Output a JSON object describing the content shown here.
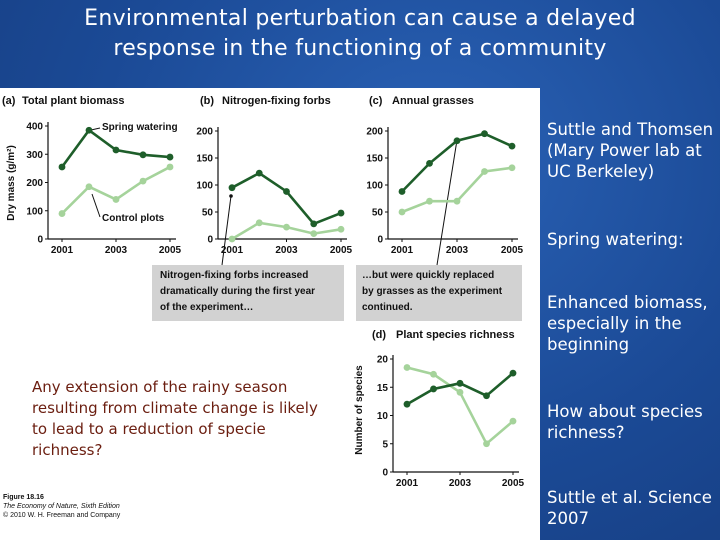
{
  "title_line1": "Environmental perturbation can cause a delayed",
  "title_line2": "response in the functioning of a community",
  "right_text": {
    "p1": "Suttle and Thomsen (Mary Power lab at UC Berkeley)",
    "p2": "Spring watering:",
    "p3": "Enhanced biomass, especially in the beginning",
    "p4": "How about species richness?",
    "p5": "Suttle et al. Science 2007"
  },
  "extension_text": "Any extension of the rainy season resulting from climate change is likely to lead to a reduction of specie richness?",
  "caption": {
    "fig": "Figure 18.16",
    "book": "The Economy of Nature, Sixth Edition",
    "copyright": "© 2010 W. H. Freeman and Company"
  },
  "colors": {
    "watering": "#1e5e2a",
    "control": "#a5d39b",
    "box": "#d2d2d2"
  },
  "chart_data": [
    {
      "type": "line",
      "panel_letter": "(a)",
      "title": "Total plant biomass",
      "ylabel": "Dry mass (g/m²)",
      "ylim": [
        0,
        400
      ],
      "yticks": [
        "0",
        "100",
        "200",
        "300",
        "400"
      ],
      "x": [
        2001,
        2002,
        2003,
        2004,
        2005
      ],
      "xticks": [
        "2001",
        "2003",
        "2005"
      ],
      "series": [
        {
          "name": "Spring watering",
          "values": [
            255,
            385,
            315,
            298,
            290
          ]
        },
        {
          "name": "Control plots",
          "values": [
            90,
            185,
            140,
            205,
            255
          ]
        }
      ]
    },
    {
      "type": "line",
      "panel_letter": "(b)",
      "title": "Nitrogen-fixing forbs",
      "ylim": [
        0,
        200
      ],
      "yticks": [
        "0",
        "50",
        "100",
        "150",
        "200"
      ],
      "x": [
        2001,
        2002,
        2003,
        2004,
        2005
      ],
      "xticks": [
        "2001",
        "2003",
        "2005"
      ],
      "series": [
        {
          "name": "Spring watering",
          "values": [
            95,
            122,
            88,
            28,
            48
          ]
        },
        {
          "name": "Control plots",
          "values": [
            0,
            30,
            22,
            10,
            18
          ]
        }
      ]
    },
    {
      "type": "line",
      "panel_letter": "(c)",
      "title": "Annual grasses",
      "ylim": [
        0,
        200
      ],
      "yticks": [
        "0",
        "50",
        "100",
        "150",
        "200"
      ],
      "x": [
        2001,
        2002,
        2003,
        2004,
        2005
      ],
      "xticks": [
        "2001",
        "2003",
        "2005"
      ],
      "series": [
        {
          "name": "Spring watering",
          "values": [
            88,
            140,
            182,
            195,
            172
          ]
        },
        {
          "name": "Control plots",
          "values": [
            50,
            70,
            70,
            125,
            132
          ]
        }
      ]
    },
    {
      "type": "line",
      "panel_letter": "(d)",
      "title": "Plant species richness",
      "ylabel": "Number of species",
      "ylim": [
        0,
        20
      ],
      "yticks": [
        "0",
        "5",
        "10",
        "15",
        "20"
      ],
      "x": [
        2001,
        2002,
        2003,
        2004,
        2005
      ],
      "xticks": [
        "2001",
        "2003",
        "2005"
      ],
      "series": [
        {
          "name": "Spring watering",
          "values": [
            12,
            14.7,
            15.7,
            13.5,
            17.5
          ]
        },
        {
          "name": "Control plots",
          "values": [
            18.5,
            17.3,
            14.1,
            5,
            9
          ]
        }
      ]
    }
  ],
  "annotations": {
    "spring_watering": "Spring watering",
    "control_plots": "Control plots",
    "forbs_box": [
      "Nitrogen-fixing forbs increased",
      "dramatically during the first year",
      "of the experiment…"
    ],
    "grasses_box": [
      "…but were quickly replaced",
      "by grasses as the experiment",
      "continued."
    ]
  }
}
